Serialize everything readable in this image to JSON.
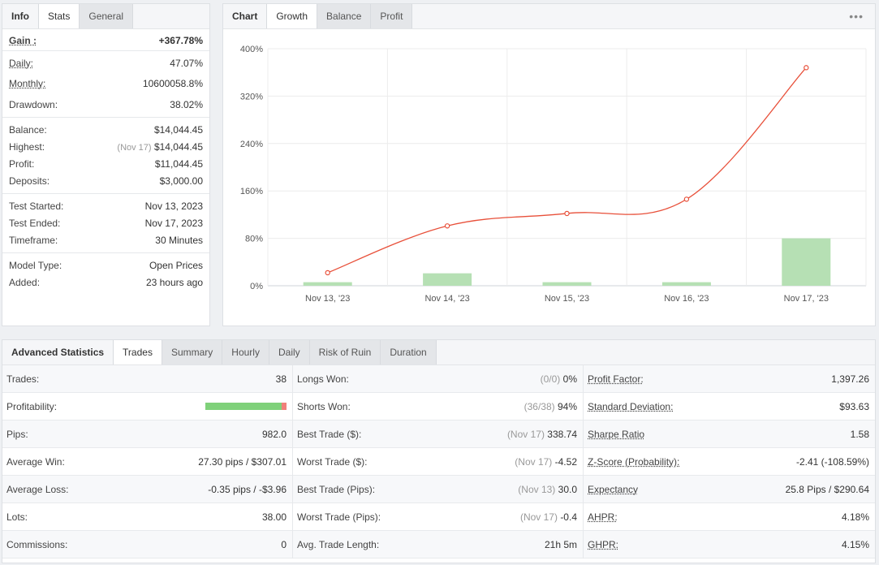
{
  "left_panel": {
    "tabs": [
      "Info",
      "Stats",
      "General"
    ],
    "gain": {
      "label": "Gain :",
      "value": "+367.78%"
    },
    "group1": [
      {
        "label": "Daily:",
        "value": "47.07%"
      },
      {
        "label": "Monthly:",
        "value": "10600058.8%"
      },
      {
        "label": "Drawdown:",
        "value": "38.02%"
      }
    ],
    "group2": {
      "balance": {
        "label": "Balance:",
        "value": "$14,044.45"
      },
      "highest": {
        "label": "Highest:",
        "note": "(Nov 17)",
        "value": "$14,044.45"
      },
      "profit": {
        "label": "Profit:",
        "value": "$11,044.45"
      },
      "deposits": {
        "label": "Deposits:",
        "value": "$3,000.00"
      }
    },
    "group3": [
      {
        "label": "Test Started:",
        "value": "Nov 13, 2023"
      },
      {
        "label": "Test Ended:",
        "value": "Nov 17, 2023"
      },
      {
        "label": "Timeframe:",
        "value": "30 Minutes"
      }
    ],
    "group4": [
      {
        "label": "Model Type:",
        "value": "Open Prices"
      },
      {
        "label": "Added:",
        "value": "23 hours ago"
      }
    ]
  },
  "chart_panel": {
    "tabs": [
      "Chart",
      "Growth",
      "Balance",
      "Profit"
    ],
    "menu_glyph": "•••"
  },
  "chart_data": {
    "type": "line",
    "categories": [
      "Nov 13, '23",
      "Nov 14, '23",
      "Nov 15, '23",
      "Nov 16, '23",
      "Nov 17, '23"
    ],
    "series": [
      {
        "type": "line",
        "values": [
          22,
          101,
          122,
          146,
          368
        ]
      },
      {
        "type": "bar",
        "values": [
          6,
          21,
          6,
          6,
          80
        ]
      }
    ],
    "yticks": [
      "0%",
      "80%",
      "160%",
      "240%",
      "320%",
      "400%"
    ],
    "ylim": [
      0,
      400
    ],
    "grid": true,
    "colors": {
      "line": "#e8503a",
      "bar": "#b6e0b4"
    }
  },
  "advanced": {
    "tabs": [
      "Advanced Statistics",
      "Trades",
      "Summary",
      "Hourly",
      "Daily",
      "Risk of Ruin",
      "Duration"
    ],
    "col1": [
      {
        "label": "Trades:",
        "value": "38"
      },
      {
        "label": "Profitability:",
        "bar": {
          "positive": 0.94,
          "negative": 0.06
        }
      },
      {
        "label": "Pips:",
        "value": "982.0"
      },
      {
        "label": "Average Win:",
        "value": "27.30 pips / $307.01"
      },
      {
        "label": "Average Loss:",
        "value": "-0.35 pips / -$3.96"
      },
      {
        "label": "Lots:",
        "value": "38.00"
      },
      {
        "label": "Commissions:",
        "value": "0"
      }
    ],
    "col2": [
      {
        "label": "Longs Won:",
        "note": "(0/0)",
        "value": "0%"
      },
      {
        "label": "Shorts Won:",
        "note": "(36/38)",
        "value": "94%"
      },
      {
        "label": "Best Trade ($):",
        "note": "(Nov 17)",
        "value": "338.74"
      },
      {
        "label": "Worst Trade ($):",
        "note": "(Nov 17)",
        "value": "-4.52"
      },
      {
        "label": "Best Trade (Pips):",
        "note": "(Nov 13)",
        "value": "30.0"
      },
      {
        "label": "Worst Trade (Pips):",
        "note": "(Nov 17)",
        "value": "-0.4"
      },
      {
        "label": "Avg. Trade Length:",
        "note": "",
        "value": "21h 5m"
      }
    ],
    "col3": [
      {
        "label": "Profit Factor:",
        "value": "1,397.26"
      },
      {
        "label": "Standard Deviation:",
        "value": "$93.63"
      },
      {
        "label": "Sharpe Ratio",
        "value": "1.58"
      },
      {
        "label": "Z-Score (Probability):",
        "value": "-2.41 (-108.59%)"
      },
      {
        "label": "Expectancy",
        "value": "25.8 Pips / $290.64"
      },
      {
        "label": "AHPR:",
        "value": "4.18%"
      },
      {
        "label": "GHPR:",
        "value": "4.15%"
      }
    ]
  }
}
